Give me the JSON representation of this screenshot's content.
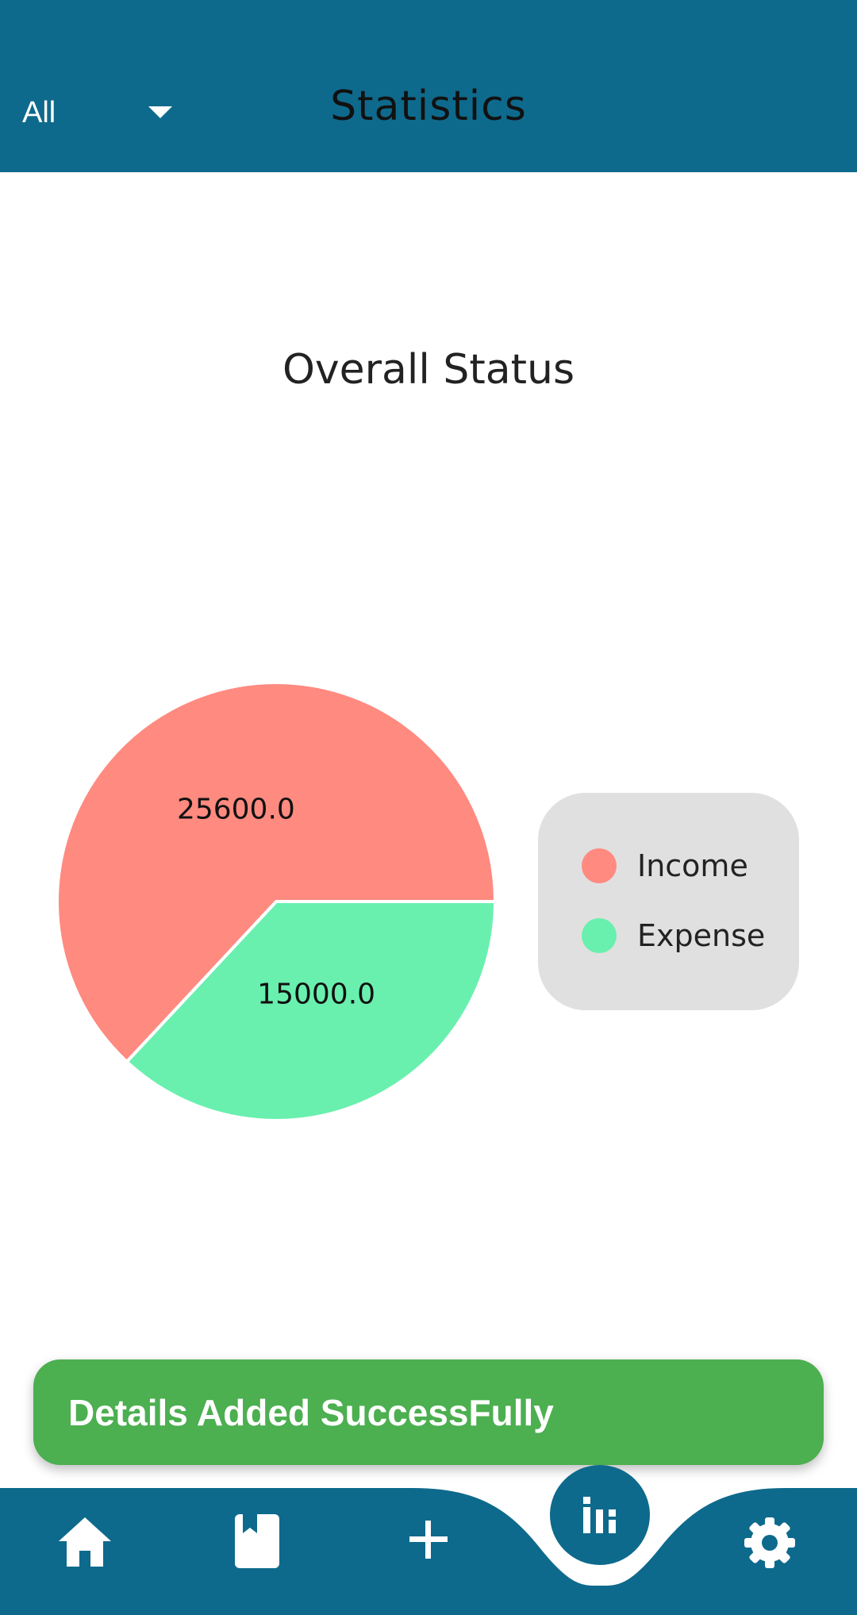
{
  "header": {
    "filter_value": "All",
    "title": "Statistics"
  },
  "section": {
    "title": "Overall Status"
  },
  "chart_data": {
    "type": "pie",
    "categories": [
      "Income",
      "Expense"
    ],
    "values": [
      25600.0,
      15000.0
    ],
    "value_labels": [
      "25600.0",
      "15000.0"
    ],
    "colors": [
      "#FF8A80",
      "#69F0AE"
    ],
    "title": "Overall Status",
    "legend_placement": "right"
  },
  "snackbar": {
    "message": "Details Added SuccessFully"
  },
  "navbar": {
    "items": [
      "home-icon",
      "book-icon",
      "plus-icon",
      "bar-chart-icon",
      "gear-icon"
    ],
    "active": "bar-chart-icon"
  },
  "colors": {
    "primary": "#0E6A8C",
    "success": "#4CAF50",
    "legend_bg": "#E0E0E0"
  }
}
